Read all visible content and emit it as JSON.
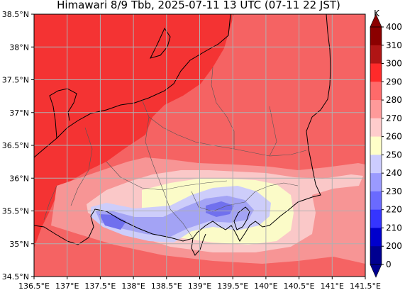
{
  "title": "Himawari 8/9 Tbb, 2025-07-11 13 UTC (07-11 22 JST)",
  "map": {
    "lon_range": [
      136.5,
      141.5
    ],
    "lat_range": [
      34.5,
      38.5
    ],
    "lon_ticks": [
      "136.5°E",
      "137°E",
      "137.5°E",
      "138°E",
      "138.5°E",
      "139°E",
      "139.5°E",
      "140°E",
      "140.5°E",
      "141°E",
      "141.5°E"
    ],
    "lat_ticks": [
      "38.5°N",
      "38°N",
      "37.5°N",
      "37°N",
      "36.5°N",
      "36°N",
      "35.5°N",
      "35°N",
      "34.5°N"
    ],
    "grid": true
  },
  "colorbar": {
    "unit": "K",
    "levels": [
      "400",
      "310",
      "300",
      "290",
      "280",
      "270",
      "260",
      "250",
      "240",
      "230",
      "220",
      "210",
      "200",
      "0"
    ],
    "colors": [
      "#8b0000",
      "#b01515",
      "#ff2a2a",
      "#ff6a6a",
      "#ff9a9a",
      "#ffcccc",
      "#ffffc8",
      "#ccccff",
      "#9a9aff",
      "#6a6aff",
      "#3535ff",
      "#0000cc",
      "#000090"
    ]
  },
  "palette": {
    "t295": "#f43333",
    "t285": "#f56363",
    "t275": "#f79595",
    "t265": "#fac8c8",
    "t255": "#fbfbc8",
    "t245": "#cdcdfa",
    "t235": "#a3a3f5",
    "t225": "#7070ee",
    "coast": "#000000",
    "pref": "#555555",
    "grid": "#b0b0b0"
  }
}
